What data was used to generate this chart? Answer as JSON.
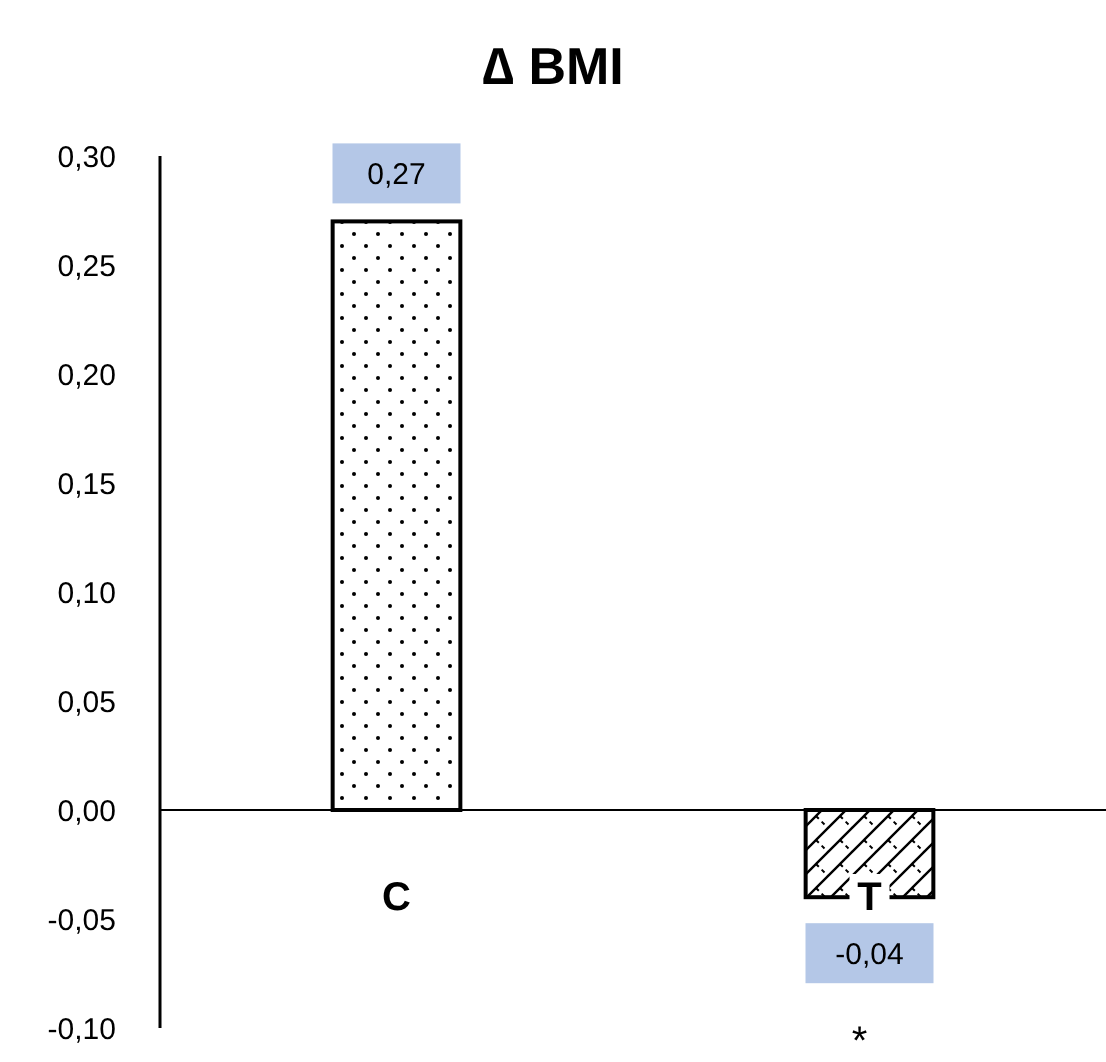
{
  "chart_data": {
    "type": "bar",
    "title": "∆ BMI",
    "categories": [
      "C",
      "T"
    ],
    "values": [
      0.27,
      -0.04
    ],
    "colors": [
      "#ffffff",
      "#ffffff"
    ],
    "ylim": [
      -0.1,
      0.3
    ],
    "yticks": [
      {
        "value": -0.1,
        "label": "-0,10"
      },
      {
        "value": -0.05,
        "label": "-0,05"
      },
      {
        "value": 0,
        "label": "0,00"
      },
      {
        "value": 0.05,
        "label": "0,05"
      },
      {
        "value": 0.1,
        "label": "0,10"
      },
      {
        "value": 0.15,
        "label": "0,15"
      },
      {
        "value": 0.2,
        "label": "0,20"
      },
      {
        "value": 0.25,
        "label": "0,25"
      },
      {
        "value": 0.3,
        "label": "0,30"
      }
    ],
    "value_labels": [
      "0,27",
      "-0,04"
    ],
    "annotations": [
      "*"
    ],
    "grid": false
  }
}
